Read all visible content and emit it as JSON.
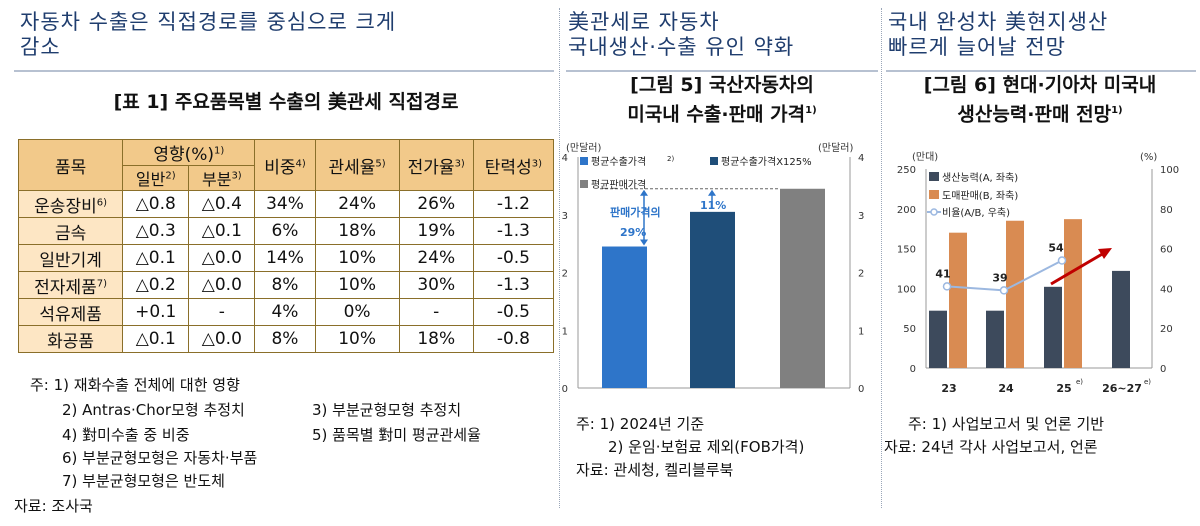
{
  "headers": {
    "col1": [
      "자동차 수출은 직접경로를 중심으로 크게",
      "감소"
    ],
    "col2": [
      "美관세로 자동차",
      "국내생산·수출 유인 약화"
    ],
    "col3": [
      "국내 완성차 美현지생산",
      "빠르게 늘어날 전망"
    ]
  },
  "table1": {
    "title": "[표 1] 주요품목별 수출의 美관세 직접경로",
    "h_item": "품목",
    "h_effect": "영향(%)",
    "h_effect_sup": "1)",
    "h_general": "일반",
    "h_general_sup": "2)",
    "h_partial": "부분",
    "h_partial_sup": "3)",
    "h_share": "비중",
    "h_share_sup": "4)",
    "h_tariff": "관세율",
    "h_tariff_sup": "5)",
    "h_pass": "전가율",
    "h_pass_sup": "3)",
    "h_elastic": "탄력성",
    "h_elastic_sup": "3)",
    "rows": [
      {
        "item": "운송장비",
        "sup": "6)",
        "general": "△0.8",
        "partial": "△0.4",
        "share": "34%",
        "tariff": "24%",
        "pass": "26%",
        "elastic": "-1.2"
      },
      {
        "item": "금속",
        "sup": "",
        "general": "△0.3",
        "partial": "△0.1",
        "share": "6%",
        "tariff": "18%",
        "pass": "19%",
        "elastic": "-1.3"
      },
      {
        "item": "일반기계",
        "sup": "",
        "general": "△0.1",
        "partial": "△0.0",
        "share": "14%",
        "tariff": "10%",
        "pass": "24%",
        "elastic": "-0.5"
      },
      {
        "item": "전자제품",
        "sup": "7)",
        "general": "△0.2",
        "partial": "△0.0",
        "share": "8%",
        "tariff": "10%",
        "pass": "30%",
        "elastic": "-1.3"
      },
      {
        "item": "석유제품",
        "sup": "",
        "general": "+0.1",
        "partial": "-",
        "share": "4%",
        "tariff": "0%",
        "pass": "-",
        "elastic": "-0.5"
      },
      {
        "item": "화공품",
        "sup": "",
        "general": "△0.1",
        "partial": "△0.0",
        "share": "8%",
        "tariff": "10%",
        "pass": "18%",
        "elastic": "-0.8"
      }
    ],
    "notes": [
      "주: 1) 재화수출 전체에 대한 영향",
      "2) Antras·Chor모형 추정치",
      "3) 부분균형모형 추정치",
      "4) 對미수출 중 비중",
      "5) 품목별 對미 평균관세율",
      "6) 부분균형모형은 자동차·부품",
      "7) 부분균형모형은 반도체"
    ],
    "source": "자료: 조사국"
  },
  "fig5": {
    "title": [
      "[그림 5] 국산자동차의",
      "미국내 수출·판매 가격"
    ],
    "title_sup": "1)",
    "unit_left": "(만달러)",
    "unit_right": "(만달러)",
    "ticks": [
      "0",
      "1",
      "2",
      "3",
      "4"
    ],
    "legend": [
      "평균수출가격",
      "평균수출가격X125%",
      "평균판매가격"
    ],
    "legend_sup": "2)",
    "ann_gap_label": "판매가격의",
    "ann_gap_value": "29%",
    "ann_11": "11%",
    "notes": [
      "주: 1) 2024년 기준",
      "2) 운임·보험료 제외(FOB가격)",
      "자료: 관세청, 켈리블루북"
    ],
    "colors": {
      "export": "#2e75c9",
      "export125": "#1f4e79",
      "sale": "#808080",
      "ann": "#2e75c9"
    }
  },
  "fig6": {
    "title": [
      "[그림 6] 현대·기아차 미국내",
      "생산능력·판매 전망"
    ],
    "title_sup": "1)",
    "unit_left": "(만대)",
    "unit_right": "(%)",
    "left_ticks": [
      "0",
      "50",
      "100",
      "150",
      "200",
      "250"
    ],
    "right_ticks": [
      "0",
      "20",
      "40",
      "60",
      "80",
      "100"
    ],
    "legend": [
      "생산능력(A, 좌축)",
      "도매판매(B, 좌축)",
      "비율(A/B, 우축)"
    ],
    "categories": [
      "23",
      "24",
      "25",
      "26~27"
    ],
    "category_sups": [
      "",
      "",
      "e)",
      "e)"
    ],
    "ratio_labels": [
      "41",
      "39",
      "54"
    ],
    "notes": [
      "주: 1) 사업보고서 및 언론 기반",
      "자료: 24년 각사 사업보고서, 언론"
    ],
    "colors": {
      "capacity": "#3d4a5c",
      "sales": "#d98b52",
      "ratio": "#9cb8e0",
      "arrow": "#c00000"
    }
  },
  "chart_data": [
    {
      "type": "bar",
      "title": "[그림 5] 국산자동차의 미국내 수출·판매 가격",
      "ylabel": "(만달러)",
      "ylim": [
        0,
        4
      ],
      "categories": [
        "평균수출가격",
        "평균수출가격X125%",
        "평균판매가격"
      ],
      "values": [
        2.45,
        3.05,
        3.45
      ],
      "annotations": [
        "판매가격의 29%",
        "11%"
      ]
    },
    {
      "type": "bar",
      "title": "[그림 6] 현대·기아차 미국내 생산능력·판매 전망",
      "categories": [
        "23",
        "24",
        "25e)",
        "26~27e)"
      ],
      "ylim": [
        0,
        250
      ],
      "series": [
        {
          "name": "생산능력(A, 좌축)",
          "values": [
            72,
            72,
            102,
            122
          ]
        },
        {
          "name": "도매판매(B, 좌축)",
          "values": [
            170,
            185,
            187,
            null
          ]
        },
        {
          "name": "비율(A/B, 우축)",
          "values": [
            41,
            39,
            54,
            null
          ],
          "axis": "right",
          "ylim": [
            0,
            100
          ],
          "kind": "line"
        }
      ]
    }
  ]
}
